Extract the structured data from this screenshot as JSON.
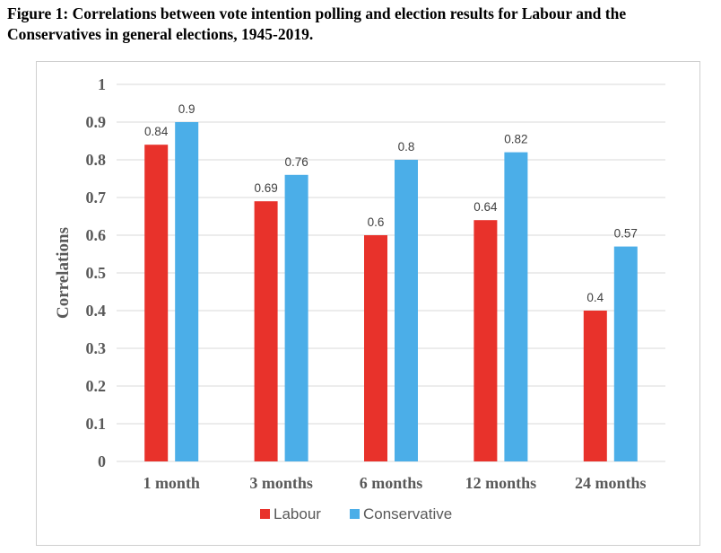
{
  "caption": "Figure 1: Correlations between vote intention polling and election results for Labour and the Conservatives in general elections, 1945-2019.",
  "chart_data": {
    "type": "bar",
    "title": "",
    "xlabel": "",
    "ylabel": "Correlations",
    "ylim": [
      0,
      1
    ],
    "yticks": [
      "0",
      "0.1",
      "0.2",
      "0.3",
      "0.4",
      "0.5",
      "0.6",
      "0.7",
      "0.8",
      "0.9",
      "1"
    ],
    "categories": [
      "1 month",
      "3 months",
      "6 months",
      "12 months",
      "24 months"
    ],
    "series": [
      {
        "name": "Labour",
        "color": "#e8322b",
        "values": [
          0.84,
          0.69,
          0.6,
          0.64,
          0.4
        ],
        "labels": [
          "0.84",
          "0.69",
          "0.6",
          "0.64",
          "0.4"
        ]
      },
      {
        "name": "Conservative",
        "color": "#4baee8",
        "values": [
          0.9,
          0.76,
          0.8,
          0.82,
          0.57
        ],
        "labels": [
          "0.9",
          "0.76",
          "0.8",
          "0.82",
          "0.57"
        ]
      }
    ],
    "grid": true,
    "legend": "bottom"
  }
}
